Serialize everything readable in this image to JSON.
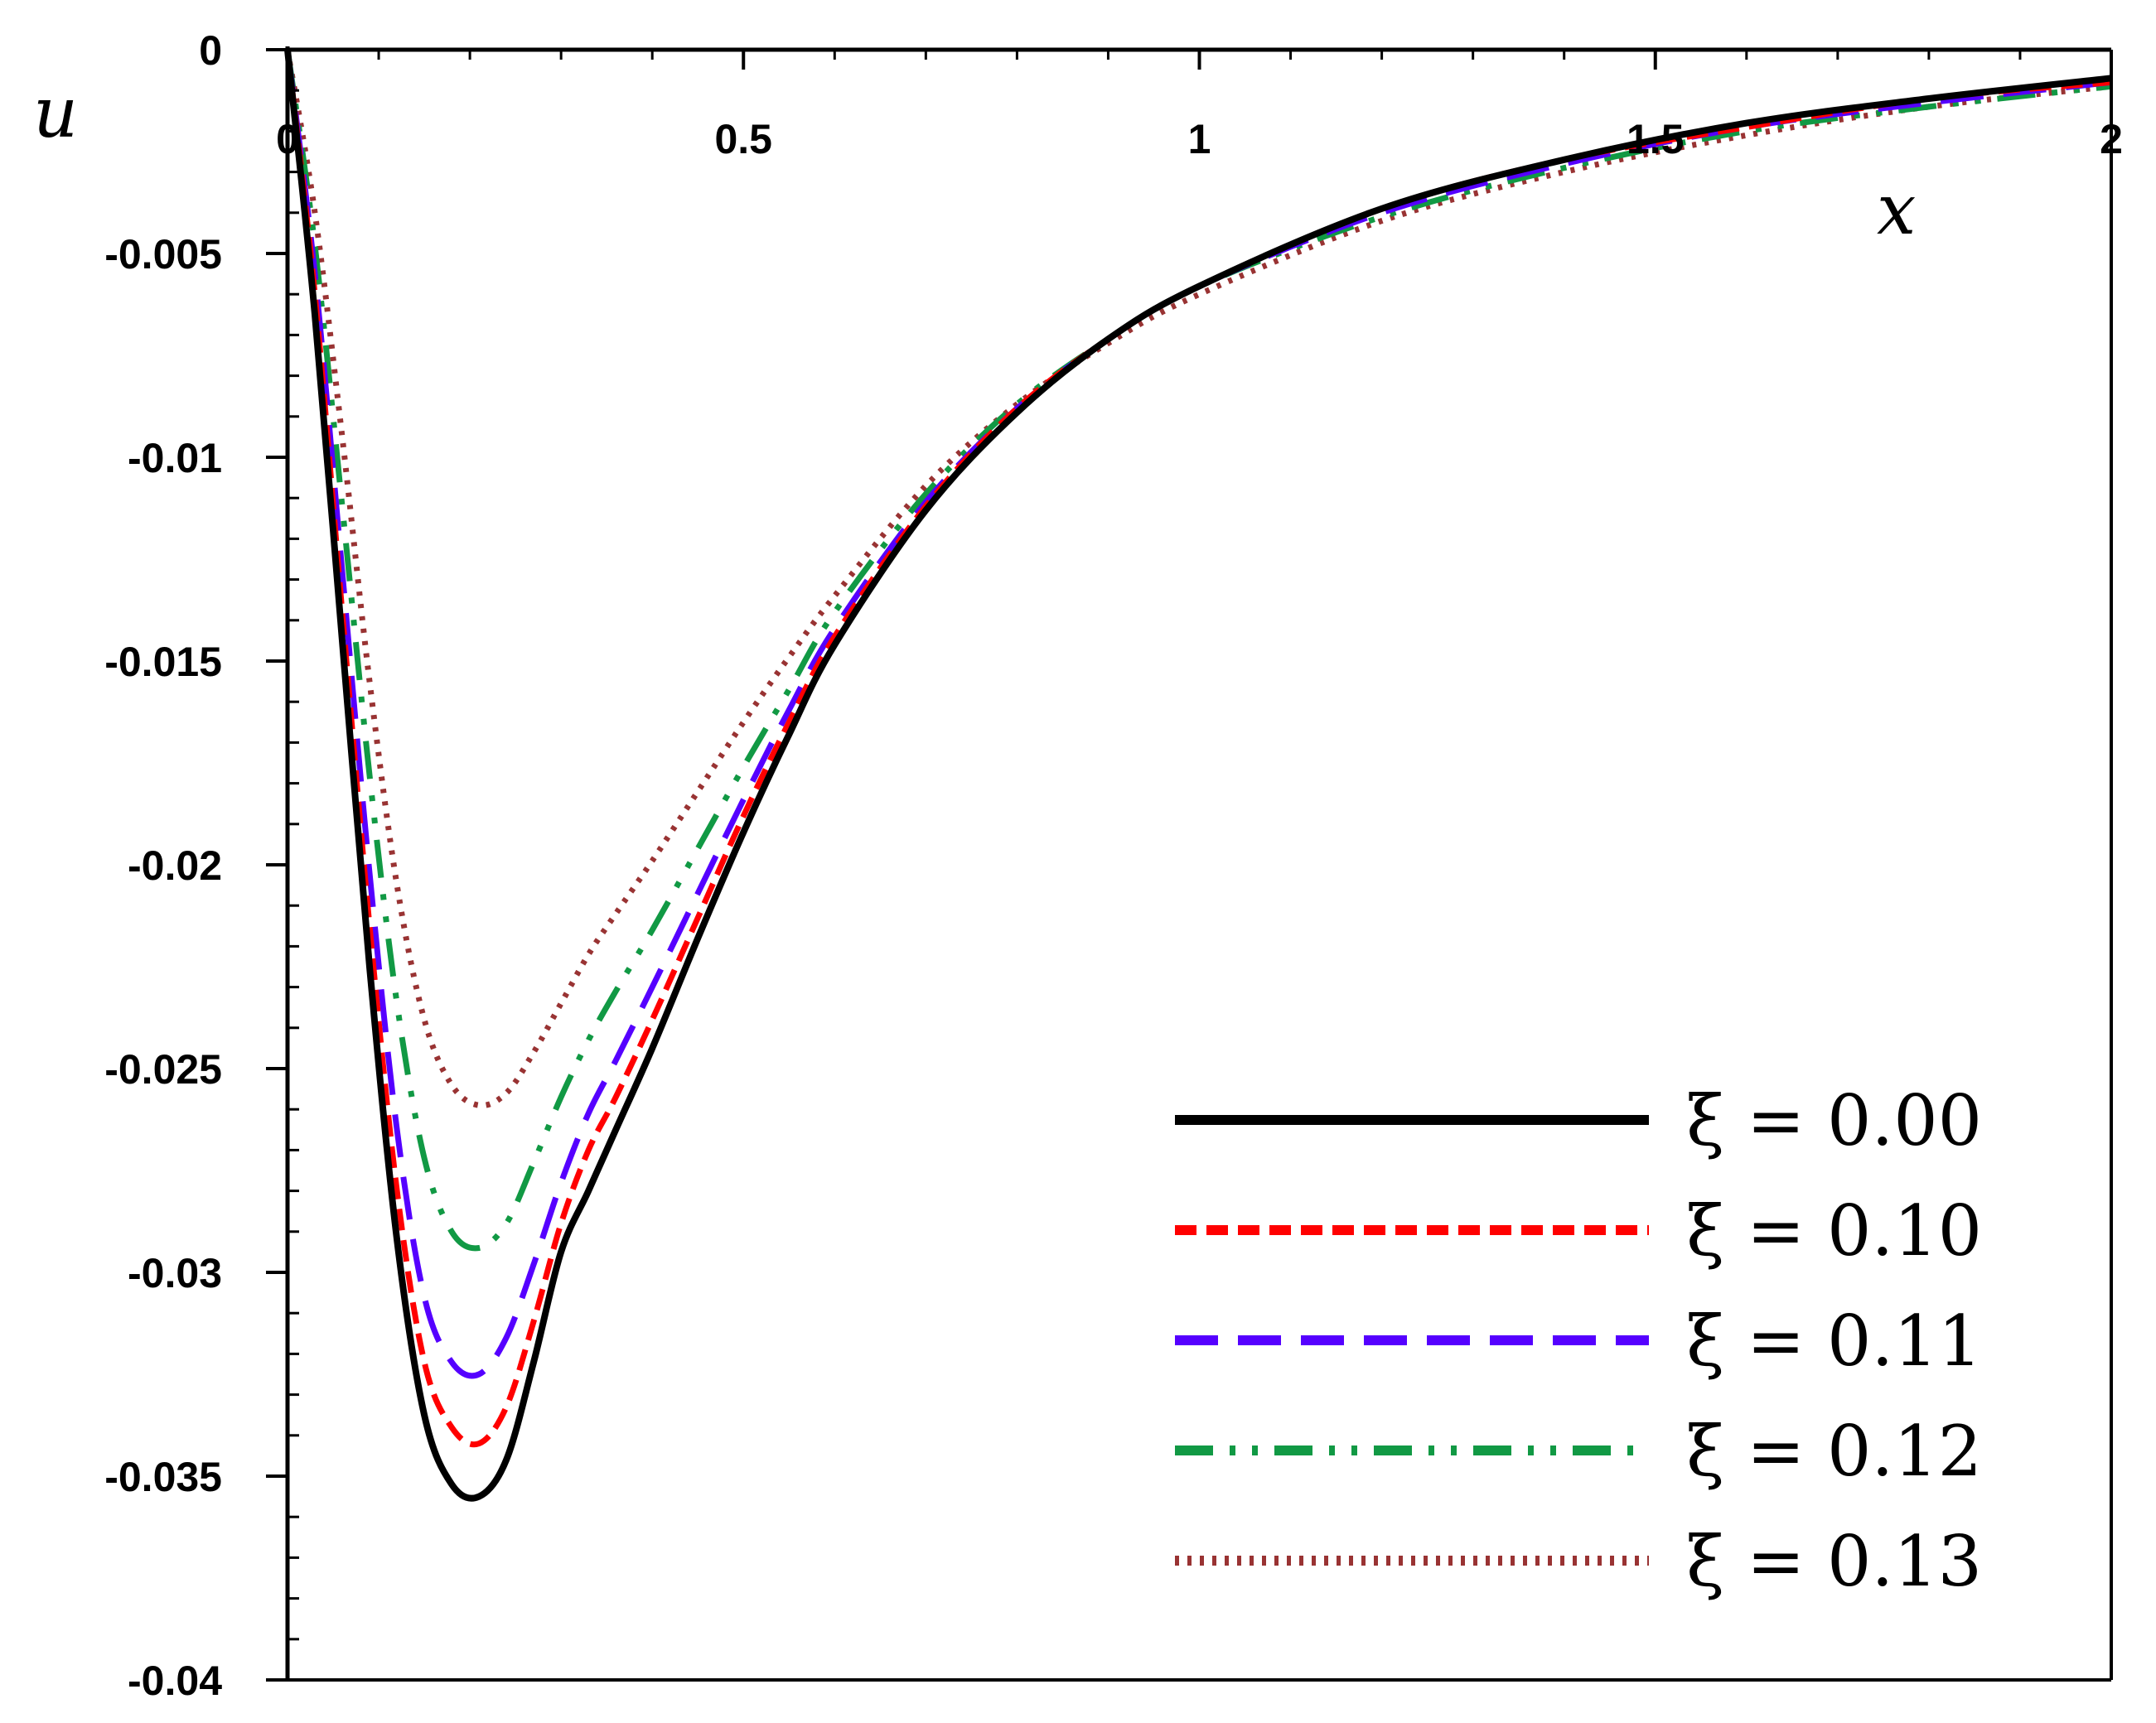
{
  "chart_data": {
    "type": "line",
    "xlabel": "x",
    "ylabel": "u",
    "xlim": [
      0,
      2
    ],
    "ylim": [
      -0.04,
      0
    ],
    "x_ticks": [
      0,
      0.5,
      1,
      1.5,
      2
    ],
    "x_tick_labels": [
      "0",
      "0.5",
      "1",
      "1.5",
      "2"
    ],
    "y_ticks": [
      0,
      -0.005,
      -0.01,
      -0.015,
      -0.02,
      -0.025,
      -0.03,
      -0.035,
      -0.04
    ],
    "y_tick_labels": [
      "0",
      "-0.005",
      "-0.01",
      "-0.015",
      "-0.02",
      "-0.025",
      "-0.03",
      "-0.035",
      "-0.04"
    ],
    "x_axis_position": "top",
    "grid": false,
    "legend_position": "bottom-right",
    "series": [
      {
        "name": "ξ = 0.00",
        "color": "#000000",
        "style": "solid",
        "points": [
          [
            0,
            0
          ],
          [
            0.03,
            -0.0065
          ],
          [
            0.06,
            -0.0145
          ],
          [
            0.09,
            -0.0225
          ],
          [
            0.12,
            -0.0292
          ],
          [
            0.15,
            -0.0335
          ],
          [
            0.18,
            -0.0352
          ],
          [
            0.21,
            -0.0355
          ],
          [
            0.24,
            -0.0346
          ],
          [
            0.27,
            -0.0322
          ],
          [
            0.3,
            -0.0295
          ],
          [
            0.33,
            -0.028
          ],
          [
            0.36,
            -0.0265
          ],
          [
            0.4,
            -0.0245
          ],
          [
            0.45,
            -0.0218
          ],
          [
            0.5,
            -0.0192
          ],
          [
            0.55,
            -0.0168
          ],
          [
            0.6,
            -0.0146
          ],
          [
            0.7,
            -0.0113
          ],
          [
            0.8,
            -0.0089
          ],
          [
            0.9,
            -0.0071
          ],
          [
            1.0,
            -0.0058
          ],
          [
            1.2,
            -0.0039
          ],
          [
            1.4,
            -0.0027
          ],
          [
            1.6,
            -0.0018
          ],
          [
            1.8,
            -0.0012
          ],
          [
            2.0,
            -0.0007
          ]
        ]
      },
      {
        "name": "ξ = 0.10",
        "color": "#ff0000",
        "style": "dashed",
        "points": [
          [
            0,
            0
          ],
          [
            0.03,
            -0.006
          ],
          [
            0.06,
            -0.0138
          ],
          [
            0.09,
            -0.0215
          ],
          [
            0.12,
            -0.028
          ],
          [
            0.15,
            -0.0322
          ],
          [
            0.18,
            -0.0338
          ],
          [
            0.21,
            -0.0342
          ],
          [
            0.24,
            -0.0333
          ],
          [
            0.27,
            -0.0312
          ],
          [
            0.3,
            -0.0288
          ],
          [
            0.33,
            -0.027
          ],
          [
            0.36,
            -0.0257
          ],
          [
            0.4,
            -0.0238
          ],
          [
            0.45,
            -0.0213
          ],
          [
            0.5,
            -0.0188
          ],
          [
            0.55,
            -0.0165
          ],
          [
            0.6,
            -0.0144
          ],
          [
            0.7,
            -0.0112
          ],
          [
            0.8,
            -0.0088
          ],
          [
            0.9,
            -0.0071
          ],
          [
            1.0,
            -0.0058
          ],
          [
            1.2,
            -0.0039
          ],
          [
            1.4,
            -0.0027
          ],
          [
            1.6,
            -0.0019
          ],
          [
            1.8,
            -0.0012
          ],
          [
            2.0,
            -0.0008
          ]
        ]
      },
      {
        "name": "ξ = 0.11",
        "color": "#5500ff",
        "style": "long-dash",
        "points": [
          [
            0,
            0
          ],
          [
            0.03,
            -0.0055
          ],
          [
            0.06,
            -0.0128
          ],
          [
            0.09,
            -0.0202
          ],
          [
            0.12,
            -0.0265
          ],
          [
            0.15,
            -0.0306
          ],
          [
            0.18,
            -0.0322
          ],
          [
            0.21,
            -0.0325
          ],
          [
            0.24,
            -0.0316
          ],
          [
            0.27,
            -0.0298
          ],
          [
            0.3,
            -0.0278
          ],
          [
            0.33,
            -0.0261
          ],
          [
            0.36,
            -0.0248
          ],
          [
            0.4,
            -0.023
          ],
          [
            0.45,
            -0.0207
          ],
          [
            0.5,
            -0.0184
          ],
          [
            0.55,
            -0.0162
          ],
          [
            0.6,
            -0.0142
          ],
          [
            0.7,
            -0.0111
          ],
          [
            0.8,
            -0.0088
          ],
          [
            0.9,
            -0.0071
          ],
          [
            1.0,
            -0.0058
          ],
          [
            1.2,
            -0.004
          ],
          [
            1.4,
            -0.0028
          ],
          [
            1.6,
            -0.0019
          ],
          [
            1.8,
            -0.0013
          ],
          [
            2.0,
            -0.0008
          ]
        ]
      },
      {
        "name": "ξ = 0.12",
        "color": "#119944",
        "style": "dash-dot-dot",
        "points": [
          [
            0,
            0
          ],
          [
            0.03,
            -0.0048
          ],
          [
            0.06,
            -0.0112
          ],
          [
            0.09,
            -0.0178
          ],
          [
            0.12,
            -0.0234
          ],
          [
            0.15,
            -0.0272
          ],
          [
            0.18,
            -0.029
          ],
          [
            0.21,
            -0.0294
          ],
          [
            0.24,
            -0.0288
          ],
          [
            0.27,
            -0.0273
          ],
          [
            0.3,
            -0.0257
          ],
          [
            0.33,
            -0.0243
          ],
          [
            0.36,
            -0.0231
          ],
          [
            0.4,
            -0.0216
          ],
          [
            0.45,
            -0.0196
          ],
          [
            0.5,
            -0.0176
          ],
          [
            0.55,
            -0.0157
          ],
          [
            0.6,
            -0.0138
          ],
          [
            0.7,
            -0.0109
          ],
          [
            0.8,
            -0.0087
          ],
          [
            0.9,
            -0.0071
          ],
          [
            1.0,
            -0.0058
          ],
          [
            1.2,
            -0.0041
          ],
          [
            1.4,
            -0.0029
          ],
          [
            1.6,
            -0.002
          ],
          [
            1.8,
            -0.0014
          ],
          [
            2.0,
            -0.0009
          ]
        ]
      },
      {
        "name": "ξ = 0.13",
        "color": "#993333",
        "style": "dotted",
        "points": [
          [
            0,
            0
          ],
          [
            0.03,
            -0.004
          ],
          [
            0.06,
            -0.0095
          ],
          [
            0.09,
            -0.0155
          ],
          [
            0.12,
            -0.0205
          ],
          [
            0.15,
            -0.0238
          ],
          [
            0.18,
            -0.0254
          ],
          [
            0.21,
            -0.0259
          ],
          [
            0.24,
            -0.0256
          ],
          [
            0.27,
            -0.0246
          ],
          [
            0.3,
            -0.0234
          ],
          [
            0.33,
            -0.0222
          ],
          [
            0.36,
            -0.0212
          ],
          [
            0.4,
            -0.0199
          ],
          [
            0.45,
            -0.0182
          ],
          [
            0.5,
            -0.0165
          ],
          [
            0.55,
            -0.0149
          ],
          [
            0.6,
            -0.0134
          ],
          [
            0.7,
            -0.0107
          ],
          [
            0.8,
            -0.0087
          ],
          [
            0.9,
            -0.0072
          ],
          [
            1.0,
            -0.006
          ],
          [
            1.2,
            -0.0042
          ],
          [
            1.4,
            -0.003
          ],
          [
            1.6,
            -0.0021
          ],
          [
            1.8,
            -0.0014
          ],
          [
            2.0,
            -0.0009
          ]
        ]
      }
    ]
  }
}
